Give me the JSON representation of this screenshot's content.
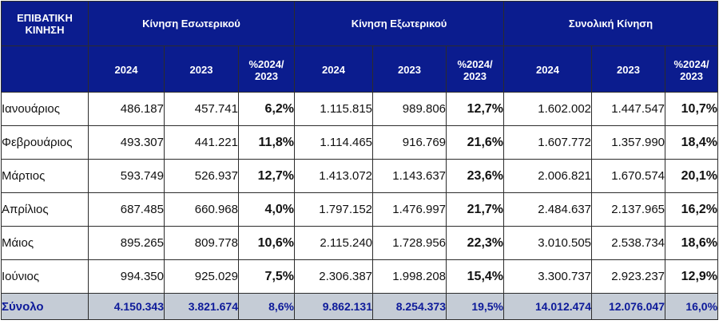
{
  "header": {
    "corner": "ΕΠΙΒΑΤΙΚΗ ΚΙΝΗΣΗ",
    "groups": [
      "Κίνηση Εσωτερικού",
      "Κίνηση Εξωτερικού",
      "Συνολική Κίνηση"
    ],
    "col_current": "2024",
    "col_previous": "2023",
    "col_change": "%2024/ 2023"
  },
  "rows": [
    {
      "month": "Ιανουάριος",
      "dom_2024": "486.187",
      "dom_2023": "457.741",
      "dom_pct": "6,2%",
      "int_2024": "1.115.815",
      "int_2023": "989.806",
      "int_pct": "12,7%",
      "tot_2024": "1.602.002",
      "tot_2023": "1.447.547",
      "tot_pct": "10,7%"
    },
    {
      "month": "Φεβρουάριος",
      "dom_2024": "493.307",
      "dom_2023": "441.221",
      "dom_pct": "11,8%",
      "int_2024": "1.114.465",
      "int_2023": "916.769",
      "int_pct": "21,6%",
      "tot_2024": "1.607.772",
      "tot_2023": "1.357.990",
      "tot_pct": "18,4%"
    },
    {
      "month": "Μάρτιος",
      "dom_2024": "593.749",
      "dom_2023": "526.937",
      "dom_pct": "12,7%",
      "int_2024": "1.413.072",
      "int_2023": "1.143.637",
      "int_pct": "23,6%",
      "tot_2024": "2.006.821",
      "tot_2023": "1.670.574",
      "tot_pct": "20,1%"
    },
    {
      "month": "Απρίλιος",
      "dom_2024": "687.485",
      "dom_2023": "660.968",
      "dom_pct": "4,0%",
      "int_2024": "1.797.152",
      "int_2023": "1.476.997",
      "int_pct": "21,7%",
      "tot_2024": "2.484.637",
      "tot_2023": "2.137.965",
      "tot_pct": "16,2%"
    },
    {
      "month": "Μάιος",
      "dom_2024": "895.265",
      "dom_2023": "809.778",
      "dom_pct": "10,6%",
      "int_2024": "2.115.240",
      "int_2023": "1.728.956",
      "int_pct": "22,3%",
      "tot_2024": "3.010.505",
      "tot_2023": "2.538.734",
      "tot_pct": "18,6%"
    },
    {
      "month": "Ιούνιος",
      "dom_2024": "994.350",
      "dom_2023": "925.029",
      "dom_pct": "7,5%",
      "int_2024": "2.306.387",
      "int_2023": "1.998.208",
      "int_pct": "15,4%",
      "tot_2024": "3.300.737",
      "tot_2023": "2.923.237",
      "tot_pct": "12,9%"
    }
  ],
  "total": {
    "month": "Σύνολο",
    "dom_2024": "4.150.343",
    "dom_2023": "3.821.674",
    "dom_pct": "8,6%",
    "int_2024": "9.862.131",
    "int_2023": "8.254.373",
    "int_pct": "19,5%",
    "tot_2024": "14.012.474",
    "tot_2023": "12.076.047",
    "tot_pct": "16,0%"
  },
  "colors": {
    "header_bg": "#0b1c8e",
    "header_text": "#ffffff",
    "total_bg": "#c5ccd6",
    "total_text": "#0d1a9a"
  }
}
